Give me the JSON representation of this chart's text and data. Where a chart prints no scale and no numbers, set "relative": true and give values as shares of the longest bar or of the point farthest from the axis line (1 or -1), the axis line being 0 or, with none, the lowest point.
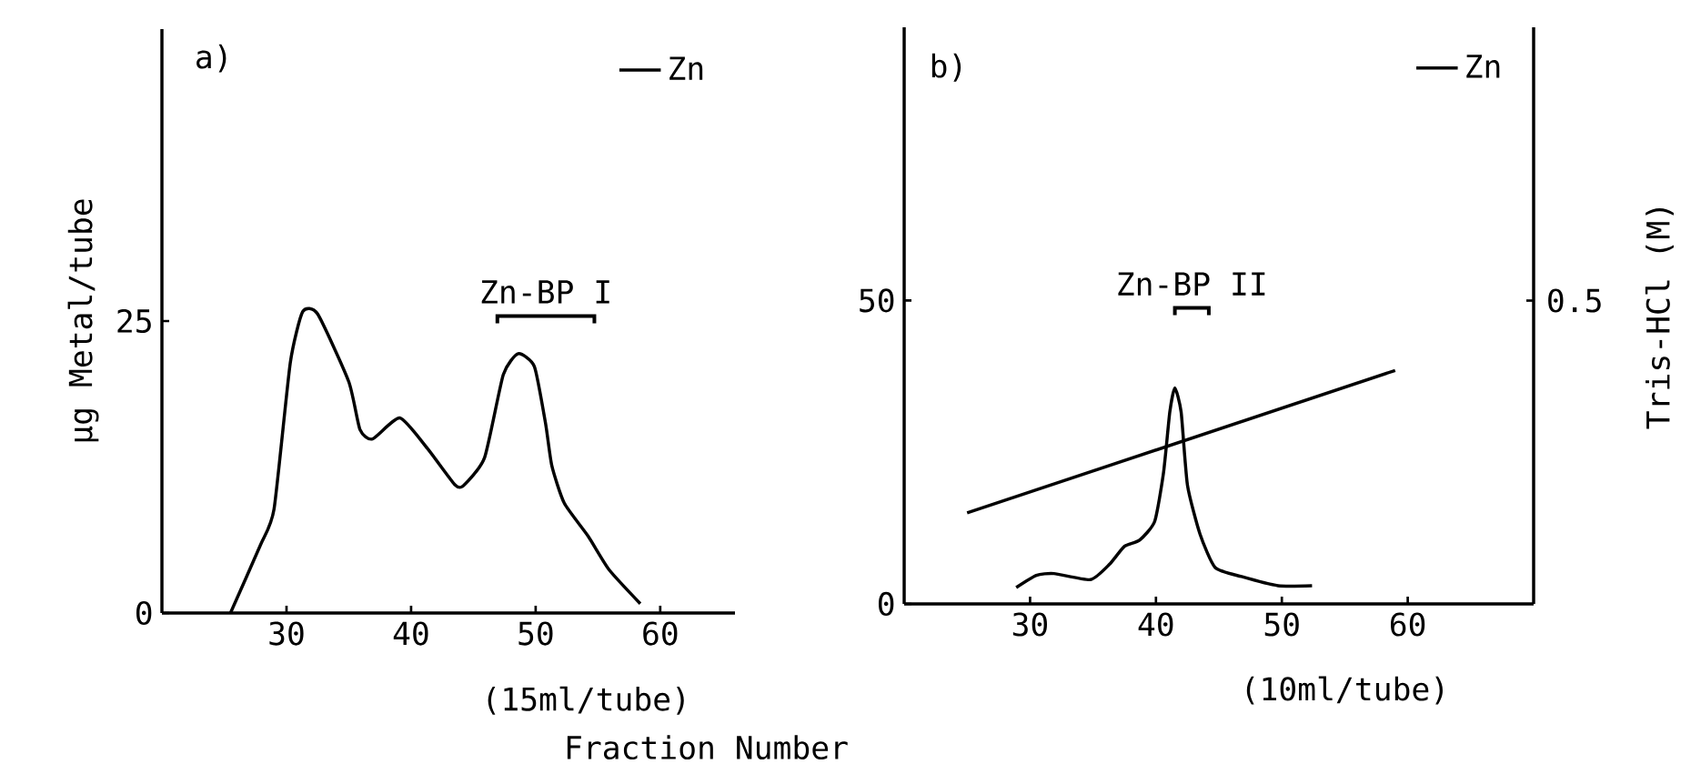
{
  "chart_data": [
    {
      "type": "line",
      "title": "a)",
      "xlabel": "(15ml/tube)",
      "ylabel": "μg Metal/tube",
      "xlim": [
        20,
        66
      ],
      "ylim": [
        0,
        50
      ],
      "xticks": [
        30,
        40,
        50,
        60
      ],
      "yticks": [
        0,
        25
      ],
      "legend": "top right",
      "series": [
        {
          "name": "Zn",
          "color": "#000000",
          "x": [
            25.5,
            27.9,
            29.0,
            30.3,
            31.3,
            32.5,
            35.0,
            35.9,
            36.9,
            39.1,
            41.3,
            43.5,
            44.2,
            45.9,
            47.4,
            48.6,
            49.9,
            50.8,
            51.3,
            52.3,
            54.2,
            55.9,
            58.4
          ],
          "values": [
            0,
            5.8,
            8.9,
            21.4,
            25.8,
            25.6,
            19.8,
            15.7,
            14.9,
            16.7,
            14.1,
            11.0,
            10.9,
            13.3,
            20.4,
            22.2,
            21.1,
            16.2,
            12.6,
            9.4,
            6.6,
            3.7,
            0.8
          ]
        }
      ],
      "annotations": [
        "Zn-BP I",
        "Fraction Number"
      ]
    },
    {
      "type": "line",
      "title": "b)",
      "xlabel": "(10ml/tube)",
      "xlim": [
        20,
        70
      ],
      "ylim": [
        0,
        95
      ],
      "xticks": [
        30,
        40,
        50,
        60
      ],
      "yticks": [
        0,
        50
      ],
      "legend": "top right",
      "series": [
        {
          "name": "Zn",
          "color": "#000000",
          "x": [
            28.9,
            30.5,
            31.9,
            34.8,
            36.3,
            37.5,
            38.7,
            39.9,
            40.6,
            41.1,
            41.5,
            42.0,
            42.5,
            43.5,
            44.7,
            46.8,
            49.7,
            52.4
          ],
          "values": [
            2.7,
            4.7,
            5.0,
            4.0,
            6.5,
            9.5,
            10.5,
            13.6,
            21.6,
            31.6,
            35.6,
            31.6,
            19.6,
            11.5,
            6.0,
            4.5,
            3.0,
            3.0
          ]
        }
      ],
      "annotations": [
        "Zn-BP II"
      ]
    },
    {
      "type": "line",
      "relative": true,
      "ylabel": "Tris-HCl (M)",
      "xlim": [
        20,
        70
      ],
      "series": [
        {
          "color": "#000000",
          "x": [
            25,
            59
          ],
          "values": [
            0.39,
            1
          ]
        }
      ],
      "annotations": [
        "0.5"
      ]
    }
  ]
}
